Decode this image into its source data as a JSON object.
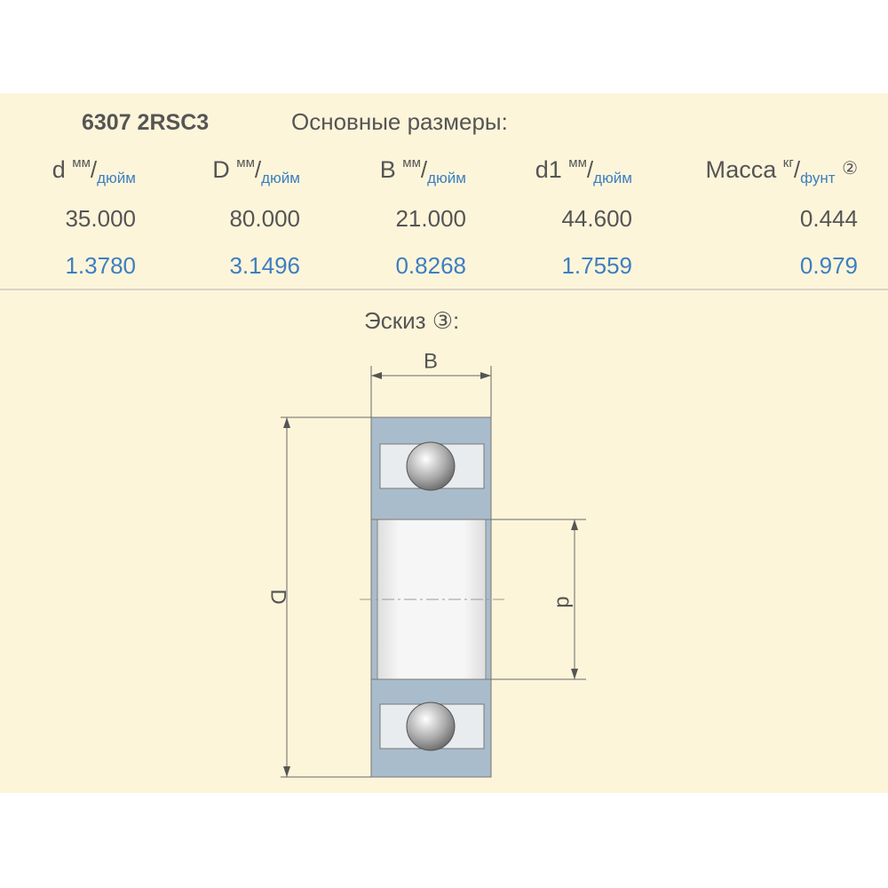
{
  "header": {
    "part": "6307 2RSC3",
    "title": "Основные размеры:"
  },
  "table": {
    "unit_separator": "/",
    "columns": [
      {
        "symbol": "d",
        "unit_metric": "мм",
        "unit_imperial": "дюйм"
      },
      {
        "symbol": "D",
        "unit_metric": "мм",
        "unit_imperial": "дюйм"
      },
      {
        "symbol": "B",
        "unit_metric": "мм",
        "unit_imperial": "дюйм"
      },
      {
        "symbol": "d1",
        "unit_metric": "мм",
        "unit_imperial": "дюйм"
      },
      {
        "symbol": "Масса",
        "unit_metric": "кг",
        "unit_imperial": "фунт",
        "note": "②"
      }
    ],
    "rows": [
      [
        "35.000",
        "80.000",
        "21.000",
        "44.600",
        "0.444"
      ],
      [
        "1.3780",
        "3.1496",
        "0.8268",
        "1.7559",
        "0.979"
      ]
    ]
  },
  "sketch": {
    "title": "Эскиз ③:",
    "labels": {
      "width": "B",
      "outer": "D",
      "bore": "d"
    }
  }
}
